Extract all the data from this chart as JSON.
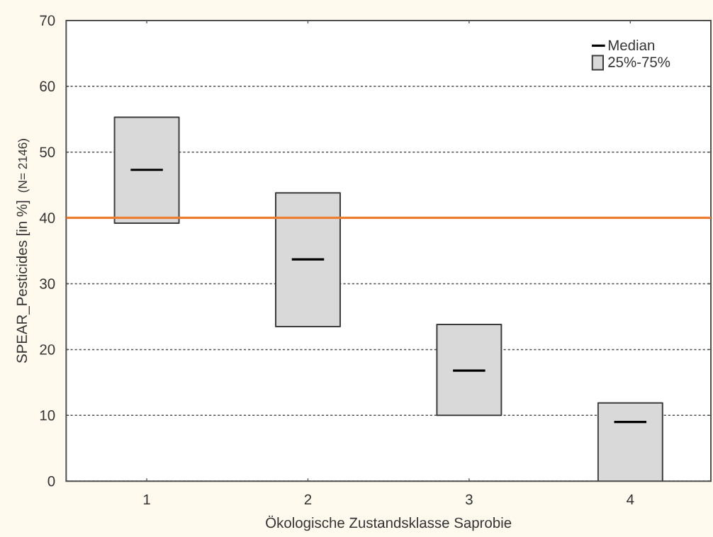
{
  "chart_data": {
    "type": "box",
    "xlabel": "Ökologische Zustandsklasse Saprobie",
    "ylabel": "SPEAR_Pesticides [in %]",
    "annotations": [
      "(N= 2146)",
      "Median"
    ],
    "categories": [
      "1",
      "2",
      "3",
      "4"
    ],
    "series": [
      {
        "name": "25%-75%",
        "color": "#d9d9d9",
        "boxes": [
          {
            "low": 39.2,
            "q1": 39.2,
            "median": 47.3,
            "q3": 55.3,
            "high": 55.3
          },
          {
            "low": 23.5,
            "q1": 23.5,
            "median": 33.7,
            "q3": 43.8,
            "high": 43.8
          },
          {
            "low": 10.0,
            "q1": 10.0,
            "median": 16.8,
            "q3": 23.8,
            "high": 23.8
          },
          {
            "low": 0,
            "q1": 0,
            "median": 9.0,
            "q3": 11.9,
            "high": 11.9
          }
        ]
      }
    ],
    "ylim": [
      0,
      70
    ],
    "yticks": [
      0,
      10,
      20,
      30,
      40,
      50,
      60,
      70
    ],
    "grid": "y",
    "legend": "top right",
    "ref_lines": [
      {
        "axis": "y",
        "value": 40,
        "color": "#ed7d31",
        "line_style": "solid"
      }
    ]
  }
}
